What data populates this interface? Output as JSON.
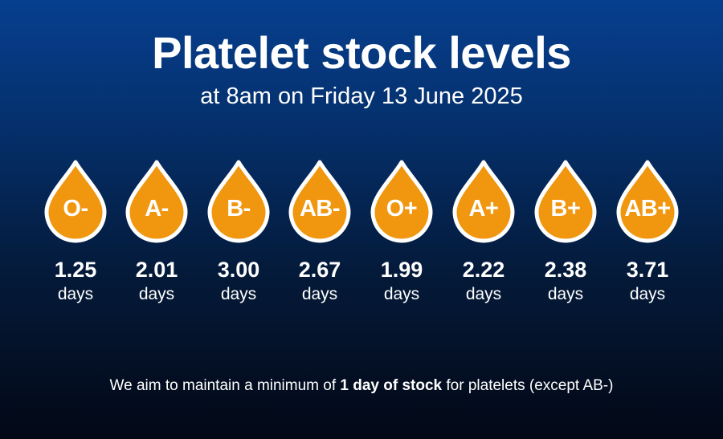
{
  "header": {
    "title": "Platelet stock levels",
    "subtitle": "at 8am on Friday 13 June 2025"
  },
  "colors": {
    "drop_fill": "#f0960f",
    "drop_outline": "#ffffff",
    "background_top": "#063f8f",
    "background_bottom": "#030815"
  },
  "stock": [
    {
      "group": "O-",
      "value": "1.25",
      "unit": "days"
    },
    {
      "group": "A-",
      "value": "2.01",
      "unit": "days"
    },
    {
      "group": "B-",
      "value": "3.00",
      "unit": "days"
    },
    {
      "group": "AB-",
      "value": "2.67",
      "unit": "days"
    },
    {
      "group": "O+",
      "value": "1.99",
      "unit": "days"
    },
    {
      "group": "A+",
      "value": "2.22",
      "unit": "days"
    },
    {
      "group": "B+",
      "value": "2.38",
      "unit": "days"
    },
    {
      "group": "AB+",
      "value": "3.71",
      "unit": "days"
    }
  ],
  "footer": {
    "before": "We aim to maintain a minimum of ",
    "emphasis": "1 day of stock",
    "after": " for platelets (except AB-)"
  }
}
